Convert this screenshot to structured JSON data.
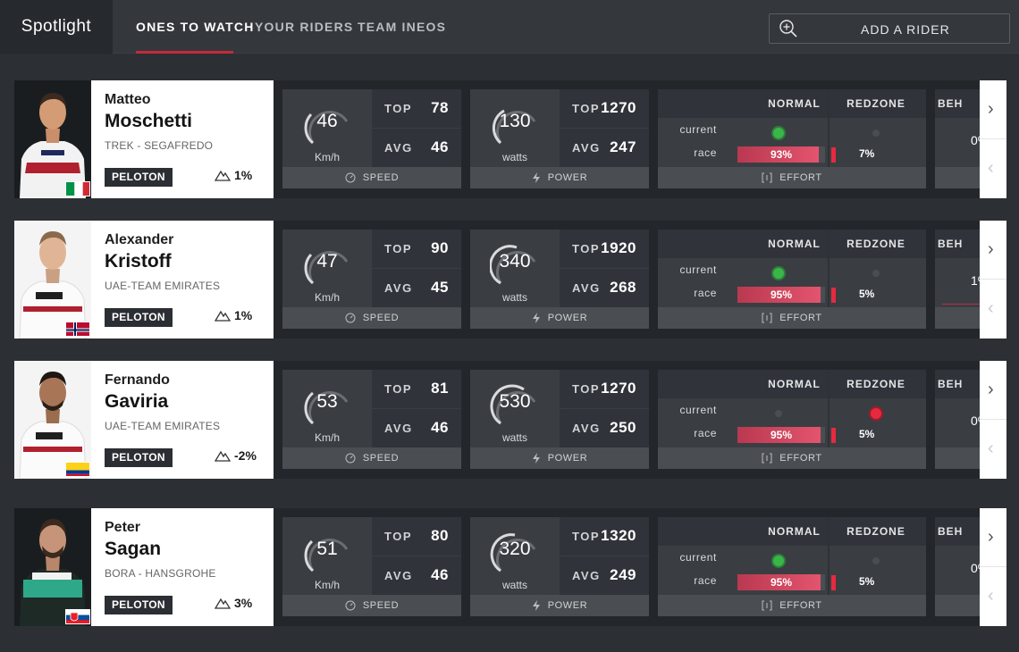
{
  "header": {
    "brand": "Spotlight",
    "tabs": [
      {
        "label": "ONES TO WATCH",
        "active": true
      },
      {
        "label": "YOUR RIDERS",
        "active": false
      },
      {
        "label": "TEAM INEOS",
        "active": false
      }
    ],
    "add_rider_label": "ADD A RIDER"
  },
  "labels": {
    "top": "TOP",
    "avg": "AVG",
    "speed_unit": "Km/h",
    "power_unit": "watts",
    "speed": "SPEED",
    "power": "POWER",
    "effort": "EFFORT",
    "normal": "NORMAL",
    "redzone": "REDZONE",
    "current": "current",
    "race": "race",
    "partial_head": "BEH"
  },
  "colors": {
    "accent": "#c42a3b",
    "green_status": "#3ab54a",
    "red_status": "#e7293f"
  },
  "riders": [
    {
      "first_name": "Matteo",
      "last_name": "Moschetti",
      "team": "TREK - SEGAFREDO",
      "group": "PELOTON",
      "gradient": "1%",
      "flag": "italy",
      "speed": {
        "current": "46",
        "top": "78",
        "avg": "46"
      },
      "power": {
        "current": "130",
        "top": "1270",
        "avg": "247"
      },
      "effort": {
        "current_zone": "normal",
        "race_normal": "93%",
        "race_normal_pct": 93,
        "race_redzone": "7%"
      },
      "partial_value": "0%"
    },
    {
      "first_name": "Alexander",
      "last_name": "Kristoff",
      "team": "UAE-TEAM EMIRATES",
      "group": "PELOTON",
      "gradient": "1%",
      "flag": "norway",
      "speed": {
        "current": "47",
        "top": "90",
        "avg": "45"
      },
      "power": {
        "current": "340",
        "top": "1920",
        "avg": "268"
      },
      "effort": {
        "current_zone": "normal",
        "race_normal": "95%",
        "race_normal_pct": 95,
        "race_redzone": "5%"
      },
      "partial_value": "1%"
    },
    {
      "first_name": "Fernando",
      "last_name": "Gaviria",
      "team": "UAE-TEAM EMIRATES",
      "group": "PELOTON",
      "gradient": "-2%",
      "flag": "colombia",
      "speed": {
        "current": "53",
        "top": "81",
        "avg": "46"
      },
      "power": {
        "current": "530",
        "top": "1270",
        "avg": "250"
      },
      "effort": {
        "current_zone": "redzone",
        "race_normal": "95%",
        "race_normal_pct": 95,
        "race_redzone": "5%"
      },
      "partial_value": "0%"
    },
    {
      "first_name": "Peter",
      "last_name": "Sagan",
      "team": "BORA - HANSGROHE",
      "group": "PELOTON",
      "gradient": "3%",
      "flag": "slovakia",
      "speed": {
        "current": "51",
        "top": "80",
        "avg": "46"
      },
      "power": {
        "current": "320",
        "top": "1320",
        "avg": "249"
      },
      "effort": {
        "current_zone": "normal",
        "race_normal": "95%",
        "race_normal_pct": 95,
        "race_redzone": "5%"
      },
      "partial_value": "0%"
    }
  ]
}
